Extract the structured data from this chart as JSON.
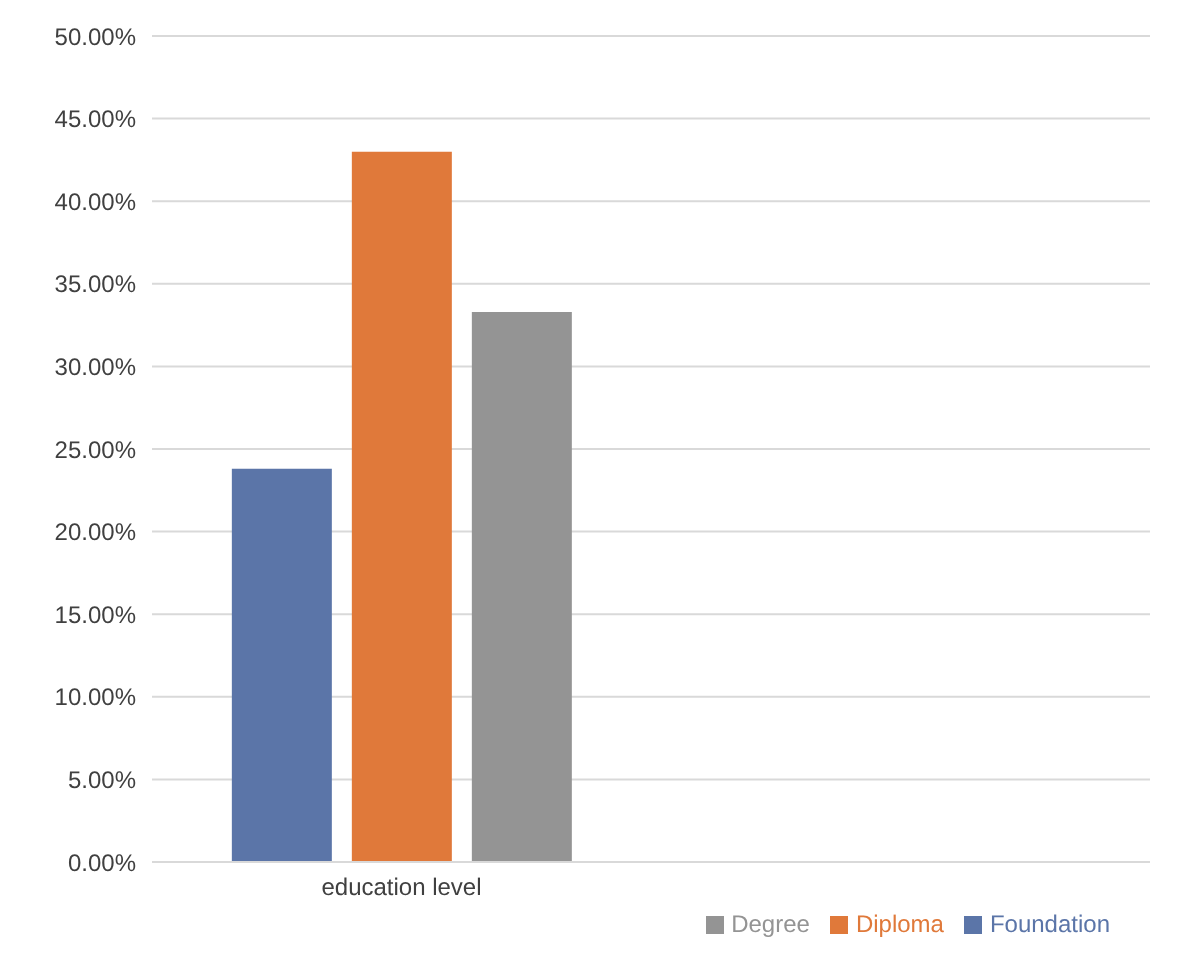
{
  "chart_data": {
    "type": "bar",
    "categories": [
      "education level",
      null
    ],
    "series": [
      {
        "name": "Foundation",
        "color": "#5b75a8",
        "values": [
          23.8,
          null
        ]
      },
      {
        "name": "Diploma",
        "color": "#e0793a",
        "values": [
          43.0,
          null
        ]
      },
      {
        "name": "Degree",
        "color": "#949494",
        "values": [
          33.3,
          null
        ]
      }
    ],
    "ylim": [
      0,
      50
    ],
    "yticks": [
      {
        "value": 0,
        "label": "0.00%"
      },
      {
        "value": 5,
        "label": "5.00%"
      },
      {
        "value": 10,
        "label": "10.00%"
      },
      {
        "value": 15,
        "label": "15.00%"
      },
      {
        "value": 20,
        "label": "20.00%"
      },
      {
        "value": 25,
        "label": "25.00%"
      },
      {
        "value": 30,
        "label": "30.00%"
      },
      {
        "value": 35,
        "label": "35.00%"
      },
      {
        "value": 40,
        "label": "40.00%"
      },
      {
        "value": 45,
        "label": "45.00%"
      },
      {
        "value": 50,
        "label": "50.00%"
      }
    ],
    "grid": "y",
    "legend": "bottom right"
  }
}
